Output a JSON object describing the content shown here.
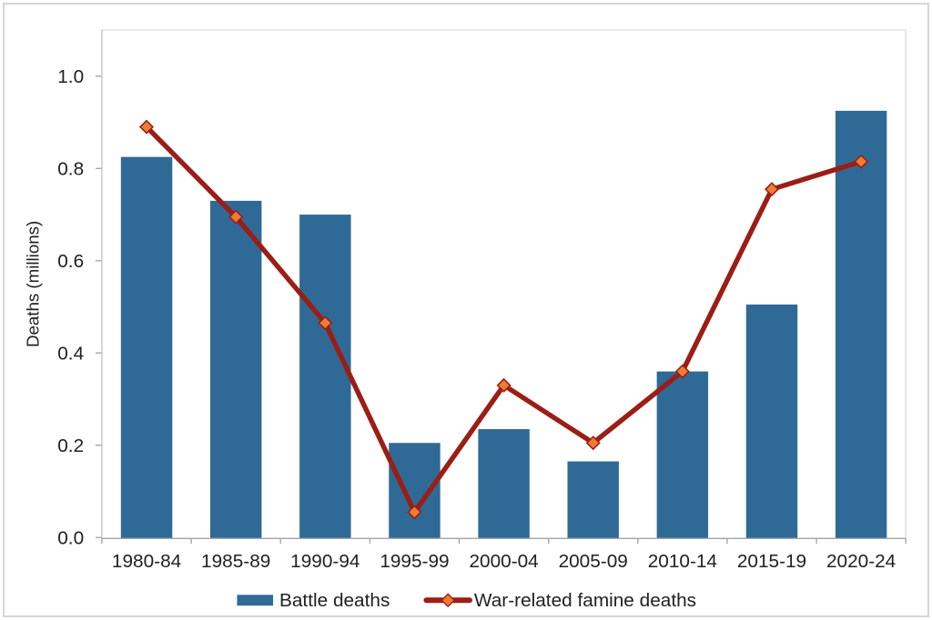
{
  "figure": {
    "background": "#ffffff",
    "border_color": "#d6d6d6"
  },
  "chart_data": {
    "type": "bar",
    "combo": "bar+line",
    "title": "",
    "xlabel": "",
    "ylabel": "Deaths (millions)",
    "categories": [
      "1980-84",
      "1985-89",
      "1990-94",
      "1995-99",
      "2000-04",
      "2005-09",
      "2010-14",
      "2015-19",
      "2020-24"
    ],
    "series": [
      {
        "name": "Battle deaths",
        "type": "bar",
        "color": "#2f6a97",
        "values": [
          0.825,
          0.73,
          0.7,
          0.205,
          0.235,
          0.165,
          0.36,
          0.505,
          0.925
        ]
      },
      {
        "name": "War-related famine deaths",
        "type": "line",
        "color": "#9b1e16",
        "marker": "diamond",
        "marker_color": "#ed7d31",
        "values": [
          0.89,
          0.695,
          0.465,
          0.055,
          0.33,
          0.205,
          0.36,
          0.755,
          0.815
        ]
      }
    ],
    "ylim": [
      0,
      1.1
    ],
    "yticks": [
      "0.0",
      "0.2",
      "0.4",
      "0.6",
      "0.8",
      "1.0"
    ],
    "ytick_values": [
      0.0,
      0.2,
      0.4,
      0.6,
      0.8,
      1.0
    ],
    "grid": false,
    "legend_position": "bottom",
    "axis_color": "#a6a6a6",
    "plot_border_color": "#d9d9d9",
    "text_color": "#212121"
  }
}
